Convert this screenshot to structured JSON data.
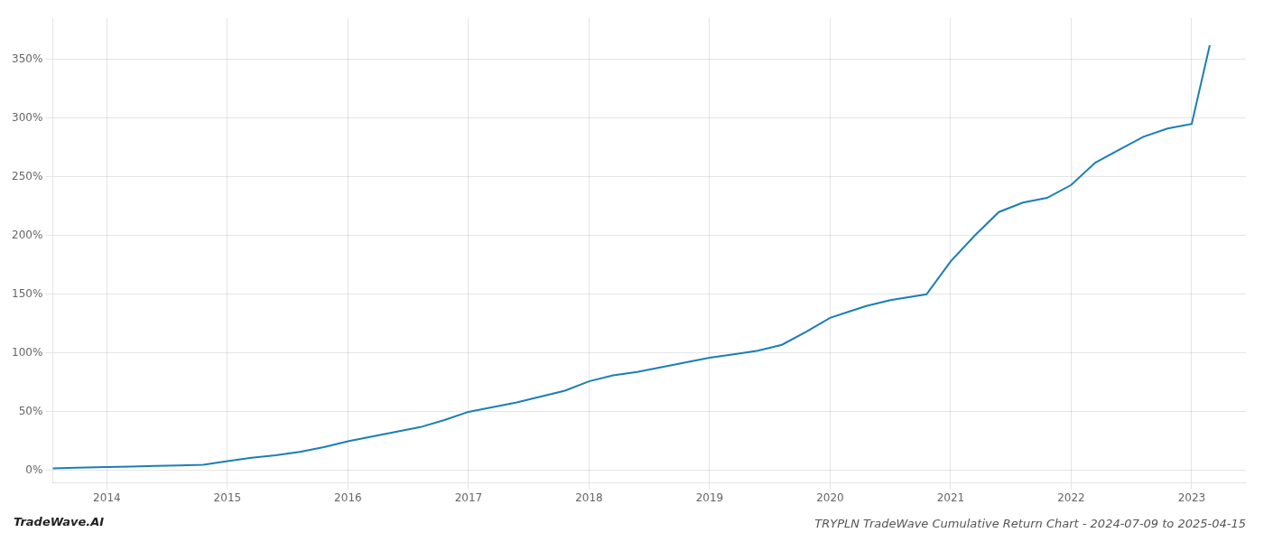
{
  "chart_data": {
    "type": "line",
    "title": "TRYPLN TradeWave Cumulative Return Chart - 2024-07-09 to 2025-04-15",
    "annotations": [
      "TradeWave.AI"
    ],
    "color": "#1a7fb5",
    "x": [
      2013.55,
      2013.75,
      2014.0,
      2014.1,
      2014.2,
      2014.4,
      2014.6,
      2014.8,
      2015.0,
      2015.2,
      2015.4,
      2015.6,
      2015.8,
      2016.0,
      2016.2,
      2016.4,
      2016.6,
      2016.8,
      2017.0,
      2017.2,
      2017.4,
      2017.6,
      2017.8,
      2018.0,
      2018.2,
      2018.4,
      2018.6,
      2018.8,
      2019.0,
      2019.2,
      2019.4,
      2019.6,
      2019.8,
      2020.0,
      2020.15,
      2020.3,
      2020.5,
      2020.8,
      2021.0,
      2021.2,
      2021.4,
      2021.6,
      2021.8,
      2022.0,
      2022.2,
      2022.4,
      2022.6,
      2022.8,
      2023.0,
      2023.15
    ],
    "values": [
      2.0,
      2.5,
      3.0,
      3.2,
      3.5,
      4.0,
      4.5,
      5.0,
      8.0,
      11.0,
      13.0,
      16.0,
      20.0,
      25.0,
      29.0,
      33.0,
      37.0,
      43.0,
      50.0,
      54.0,
      58.0,
      63.0,
      68.0,
      76.0,
      81.0,
      84.0,
      88.0,
      92.0,
      96.0,
      99.0,
      102.0,
      107.0,
      118.0,
      130.0,
      135.0,
      140.0,
      145.0,
      150.0,
      178.0,
      200.0,
      220.0,
      228.0,
      232.0,
      243.0,
      262.0,
      273.0,
      284.0,
      291.0,
      295.0,
      362.0
    ],
    "xlim": [
      2013.55,
      2023.45
    ],
    "ylim": [
      -10,
      385
    ],
    "xticks": [
      2014,
      2015,
      2016,
      2017,
      2018,
      2019,
      2020,
      2021,
      2022,
      2023
    ],
    "yticks": [
      {
        "value": 0,
        "label": "0%"
      },
      {
        "value": 50,
        "label": "50%"
      },
      {
        "value": 100,
        "label": "100%"
      },
      {
        "value": 150,
        "label": "150%"
      },
      {
        "value": 200,
        "label": "200%"
      },
      {
        "value": 250,
        "label": "250%"
      },
      {
        "value": 300,
        "label": "300%"
      },
      {
        "value": 350,
        "label": "350%"
      }
    ],
    "grid": true
  }
}
